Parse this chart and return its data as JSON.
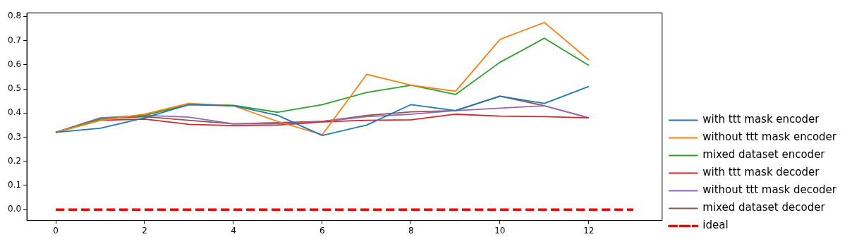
{
  "chart_data": {
    "type": "line",
    "x": [
      0,
      1,
      2,
      3,
      4,
      5,
      6,
      7,
      8,
      9,
      10,
      11,
      12
    ],
    "xlim": [
      -0.65,
      13.65
    ],
    "xticks": [
      0,
      2,
      4,
      6,
      8,
      10,
      12
    ],
    "ylim": [
      -0.045,
      0.815
    ],
    "yticks": [
      {
        "value": 0,
        "label": "0.0"
      },
      0.1,
      0.2,
      0.3,
      0.4,
      0.5,
      0.6,
      0.7,
      0.8
    ],
    "grid": false,
    "legend": "right",
    "line_style": "solid",
    "marker": "none",
    "series": [
      {
        "name": "with ttt mask encoder",
        "color": "#1f77b4",
        "values": [
          0.32,
          0.337,
          0.38,
          0.435,
          0.43,
          0.39,
          0.307,
          0.35,
          0.435,
          0.41,
          0.47,
          0.44,
          0.51
        ]
      },
      {
        "name": "without ttt mask encoder",
        "color": "#ff7f0e",
        "values": [
          0.32,
          0.37,
          0.395,
          0.44,
          0.43,
          0.365,
          0.31,
          0.56,
          0.515,
          0.49,
          0.705,
          0.775,
          0.62
        ]
      },
      {
        "name": "mixed dataset encoder",
        "color": "#2ca02c",
        "values": [
          0.32,
          0.375,
          0.39,
          0.435,
          0.432,
          0.403,
          0.435,
          0.485,
          0.515,
          0.477,
          0.61,
          0.71,
          0.597
        ]
      },
      {
        "name": "with ttt mask decoder",
        "color": "#d62728",
        "values": [
          0.32,
          0.37,
          0.375,
          0.353,
          0.348,
          0.35,
          0.363,
          0.37,
          0.372,
          0.395,
          0.387,
          0.385,
          0.38
        ]
      },
      {
        "name": "without ttt mask decoder",
        "color": "#9467bd",
        "values": [
          0.32,
          0.38,
          0.39,
          0.383,
          0.355,
          0.355,
          0.365,
          0.385,
          0.395,
          0.41,
          0.42,
          0.43,
          0.38
        ]
      },
      {
        "name": "mixed dataset decoder",
        "color": "#8c564b",
        "values": [
          0.32,
          0.375,
          0.385,
          0.37,
          0.355,
          0.36,
          0.365,
          0.39,
          0.405,
          0.41,
          0.47,
          0.43,
          0.38
        ]
      },
      {
        "name": "ideal",
        "color": "#ff0000",
        "line_style": "dashed",
        "x": [
          0,
          13
        ],
        "values": [
          0,
          0
        ]
      }
    ]
  }
}
